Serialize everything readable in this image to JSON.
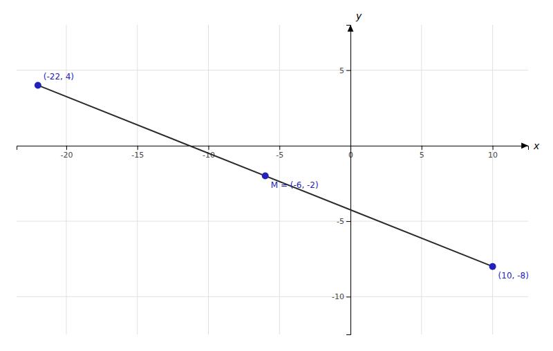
{
  "chart_data": {
    "type": "scatter",
    "series": [
      {
        "type": "line",
        "color": "#2a2a2a",
        "x": [
          -22,
          10
        ],
        "values": [
          4,
          -8
        ]
      },
      {
        "type": "scatter",
        "color": "#2222bb",
        "x": [
          10,
          -22,
          -6
        ],
        "values": [
          -8,
          4,
          -2
        ],
        "value_labels": [
          "(10, -8)",
          "(-22, 4)",
          "M = (-6, -2)"
        ]
      }
    ],
    "data_labels": true,
    "x_label": "x",
    "y_label": "y",
    "xlim": [
      -23.5,
      12.5
    ],
    "ylim": [
      -12.5,
      8.0
    ],
    "xticks": [
      -20,
      -15,
      -10,
      -5,
      0,
      5,
      10
    ],
    "yticks": [
      -10,
      -5,
      5
    ],
    "grid": true
  }
}
